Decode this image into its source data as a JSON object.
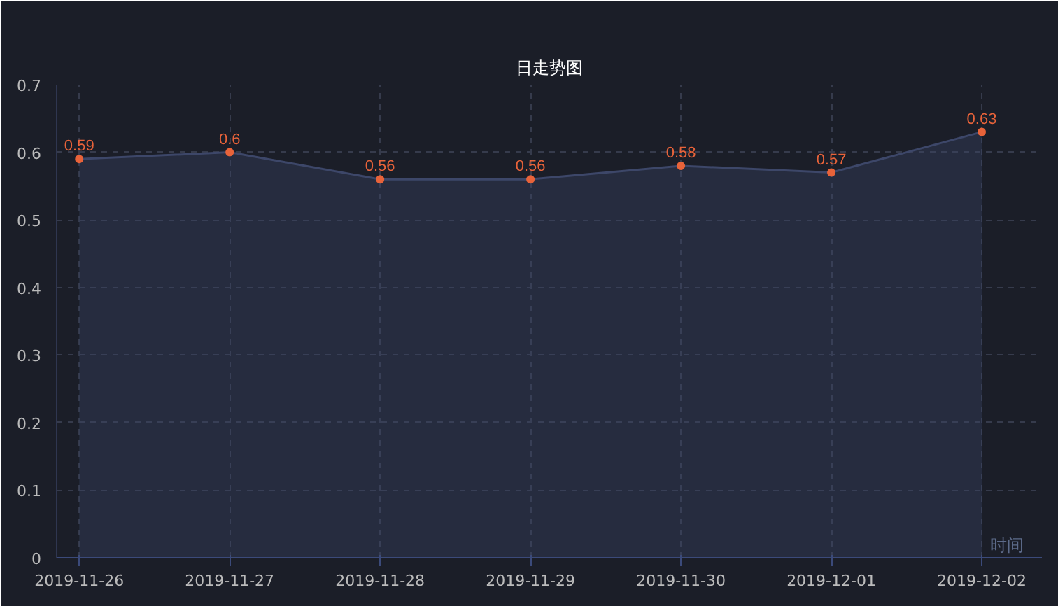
{
  "chart_data": {
    "type": "area",
    "title": "日走势图",
    "xlabel": "时间",
    "categories": [
      "2019-11-26",
      "2019-11-27",
      "2019-11-28",
      "2019-11-29",
      "2019-11-30",
      "2019-12-01",
      "2019-12-02"
    ],
    "series": [
      {
        "color": "#3d4769",
        "values": [
          0.59,
          0.6,
          0.56,
          0.56,
          0.58,
          0.57,
          0.63
        ]
      }
    ],
    "ylim": [
      0,
      0.7
    ],
    "yticks": [
      0,
      0.1,
      0.2,
      0.3,
      0.4,
      0.5,
      0.6,
      0.7
    ],
    "grid": true,
    "marker": "circle",
    "data_labels": true
  }
}
